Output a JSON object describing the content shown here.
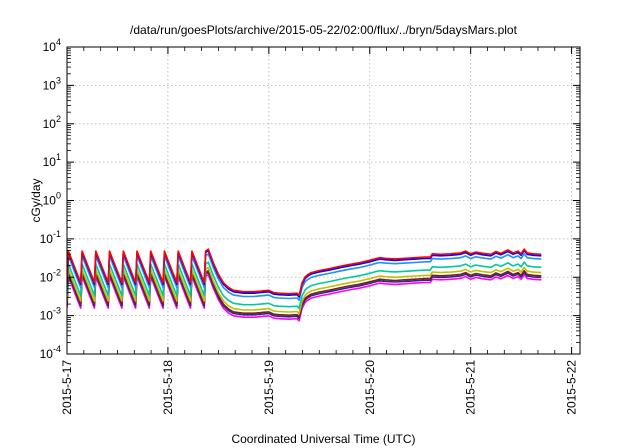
{
  "chart_data": {
    "type": "line",
    "title": "/data/run/goesPlots/archive/2015-05-22/02:00/flux/../bryn/5daysMars.plot",
    "xlabel": "Coordinated Universal Time (UTC)",
    "ylabel": "cGy/day",
    "log_y": true,
    "ylim": [
      0.0001,
      10000
    ],
    "xlim": [
      "2015-05-17 00:00",
      "2015-05-22 02:00"
    ],
    "grid": true,
    "legend": "none",
    "xticks": [
      "2015-5-17",
      "2015-5-18",
      "2015-5-19",
      "2015-5-20",
      "2015-5-21",
      "2015-5-22"
    ],
    "yticks": [
      {
        "base": "10",
        "exp": "-4"
      },
      {
        "base": "10",
        "exp": "-3"
      },
      {
        "base": "10",
        "exp": "-2"
      },
      {
        "base": "10",
        "exp": "-1"
      },
      {
        "base": "10",
        "exp": "0"
      },
      {
        "base": "10",
        "exp": "1"
      },
      {
        "base": "10",
        "exp": "2"
      },
      {
        "base": "10",
        "exp": "3"
      },
      {
        "base": "10",
        "exp": "4"
      }
    ],
    "series": [
      {
        "color": "#ff0000",
        "scale": 1.2
      },
      {
        "color": "#0000ff",
        "scale": 1.1
      },
      {
        "color": "#1e90ff",
        "scale": 0.9
      },
      {
        "color": "#00c8a0",
        "scale": 0.55
      },
      {
        "color": "#c0c000",
        "scale": 0.4
      },
      {
        "color": "#7a1f1f",
        "scale": 0.33
      },
      {
        "color": "#2a2a8a",
        "scale": 0.3
      },
      {
        "color": "#ff00ff",
        "scale": 0.26
      }
    ],
    "profile": {
      "x_unit": "days since 2015-05-17 00:00",
      "periodic": {
        "x_end": 1.38,
        "period": 0.136,
        "peak": 0.04,
        "trough": 0.006
      },
      "points": [
        [
          1.4,
          0.045
        ],
        [
          1.45,
          0.02
        ],
        [
          1.5,
          0.01
        ],
        [
          1.55,
          0.006
        ],
        [
          1.6,
          0.0045
        ],
        [
          1.65,
          0.0038
        ],
        [
          1.75,
          0.0035
        ],
        [
          1.85,
          0.0035
        ],
        [
          1.95,
          0.0037
        ],
        [
          2.0,
          0.0038
        ],
        [
          2.05,
          0.0033
        ],
        [
          2.1,
          0.0032
        ],
        [
          2.2,
          0.0031
        ],
        [
          2.28,
          0.0032
        ],
        [
          2.3,
          0.0028
        ],
        [
          2.33,
          0.006
        ],
        [
          2.36,
          0.0085
        ],
        [
          2.38,
          0.0095
        ],
        [
          2.42,
          0.011
        ],
        [
          2.5,
          0.0125
        ],
        [
          2.6,
          0.014
        ],
        [
          2.7,
          0.016
        ],
        [
          2.8,
          0.018
        ],
        [
          2.9,
          0.02
        ],
        [
          3.0,
          0.023
        ],
        [
          3.05,
          0.025
        ],
        [
          3.1,
          0.027
        ],
        [
          3.15,
          0.026
        ],
        [
          3.25,
          0.025
        ],
        [
          3.35,
          0.026
        ],
        [
          3.45,
          0.027
        ],
        [
          3.55,
          0.028
        ],
        [
          3.6,
          0.028
        ],
        [
          3.62,
          0.034
        ],
        [
          3.7,
          0.033
        ],
        [
          3.8,
          0.034
        ],
        [
          3.9,
          0.036
        ],
        [
          3.95,
          0.04
        ],
        [
          4.0,
          0.034
        ],
        [
          4.05,
          0.038
        ],
        [
          4.12,
          0.035
        ],
        [
          4.2,
          0.033
        ],
        [
          4.25,
          0.039
        ],
        [
          4.3,
          0.035
        ],
        [
          4.37,
          0.043
        ],
        [
          4.42,
          0.036
        ],
        [
          4.47,
          0.04
        ],
        [
          4.5,
          0.034
        ],
        [
          4.53,
          0.045
        ],
        [
          4.56,
          0.036
        ],
        [
          4.62,
          0.034
        ],
        [
          4.7,
          0.033
        ]
      ]
    }
  }
}
